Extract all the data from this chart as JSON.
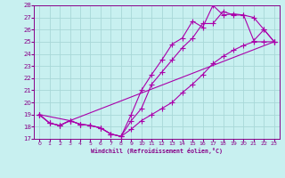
{
  "xlabel": "Windchill (Refroidissement éolien,°C)",
  "ylabel": "",
  "bg_color": "#c8f0f0",
  "line_color": "#aa00aa",
  "grid_color": "#b0dede",
  "xlim": [
    -0.5,
    23.5
  ],
  "ylim": [
    17,
    28
  ],
  "xticks": [
    0,
    1,
    2,
    3,
    4,
    5,
    6,
    7,
    8,
    9,
    10,
    11,
    12,
    13,
    14,
    15,
    16,
    17,
    18,
    19,
    20,
    21,
    22,
    23
  ],
  "yticks": [
    17,
    18,
    19,
    20,
    21,
    22,
    23,
    24,
    25,
    26,
    27,
    28
  ],
  "lines": [
    {
      "x": [
        0,
        1,
        2,
        3,
        4,
        5,
        6,
        7,
        8,
        9,
        10,
        11,
        12,
        13,
        14,
        15,
        16,
        17,
        18,
        19,
        20,
        21,
        22,
        23
      ],
      "y": [
        19,
        18.3,
        18.1,
        18.5,
        18.2,
        18.1,
        17.9,
        17.4,
        17.2,
        19.0,
        21.0,
        22.3,
        23.5,
        24.8,
        25.3,
        26.7,
        26.2,
        28.0,
        27.2,
        27.3,
        27.2,
        25.1,
        26.0,
        25.0
      ]
    },
    {
      "x": [
        0,
        1,
        2,
        3,
        4,
        5,
        6,
        7,
        8,
        9,
        10,
        11,
        12,
        13,
        14,
        15,
        16,
        17,
        18,
        19,
        20,
        21,
        22,
        23
      ],
      "y": [
        19,
        18.3,
        18.1,
        18.5,
        18.2,
        18.1,
        17.9,
        17.4,
        17.2,
        18.5,
        19.5,
        21.5,
        22.5,
        23.5,
        24.5,
        25.3,
        26.5,
        26.5,
        27.5,
        27.2,
        27.2,
        27.0,
        26.0,
        25.0
      ]
    },
    {
      "x": [
        0,
        3,
        23
      ],
      "y": [
        19,
        18.5,
        25.0
      ]
    },
    {
      "x": [
        0,
        1,
        2,
        3,
        4,
        5,
        6,
        7,
        8,
        9,
        10,
        11,
        12,
        13,
        14,
        15,
        16,
        17,
        18,
        19,
        20,
        21,
        22,
        23
      ],
      "y": [
        19,
        18.3,
        18.1,
        18.5,
        18.2,
        18.1,
        17.9,
        17.4,
        17.2,
        17.8,
        18.5,
        19.0,
        19.5,
        20.0,
        20.8,
        21.5,
        22.3,
        23.2,
        23.8,
        24.3,
        24.7,
        25.0,
        25.0,
        25.0
      ]
    }
  ]
}
